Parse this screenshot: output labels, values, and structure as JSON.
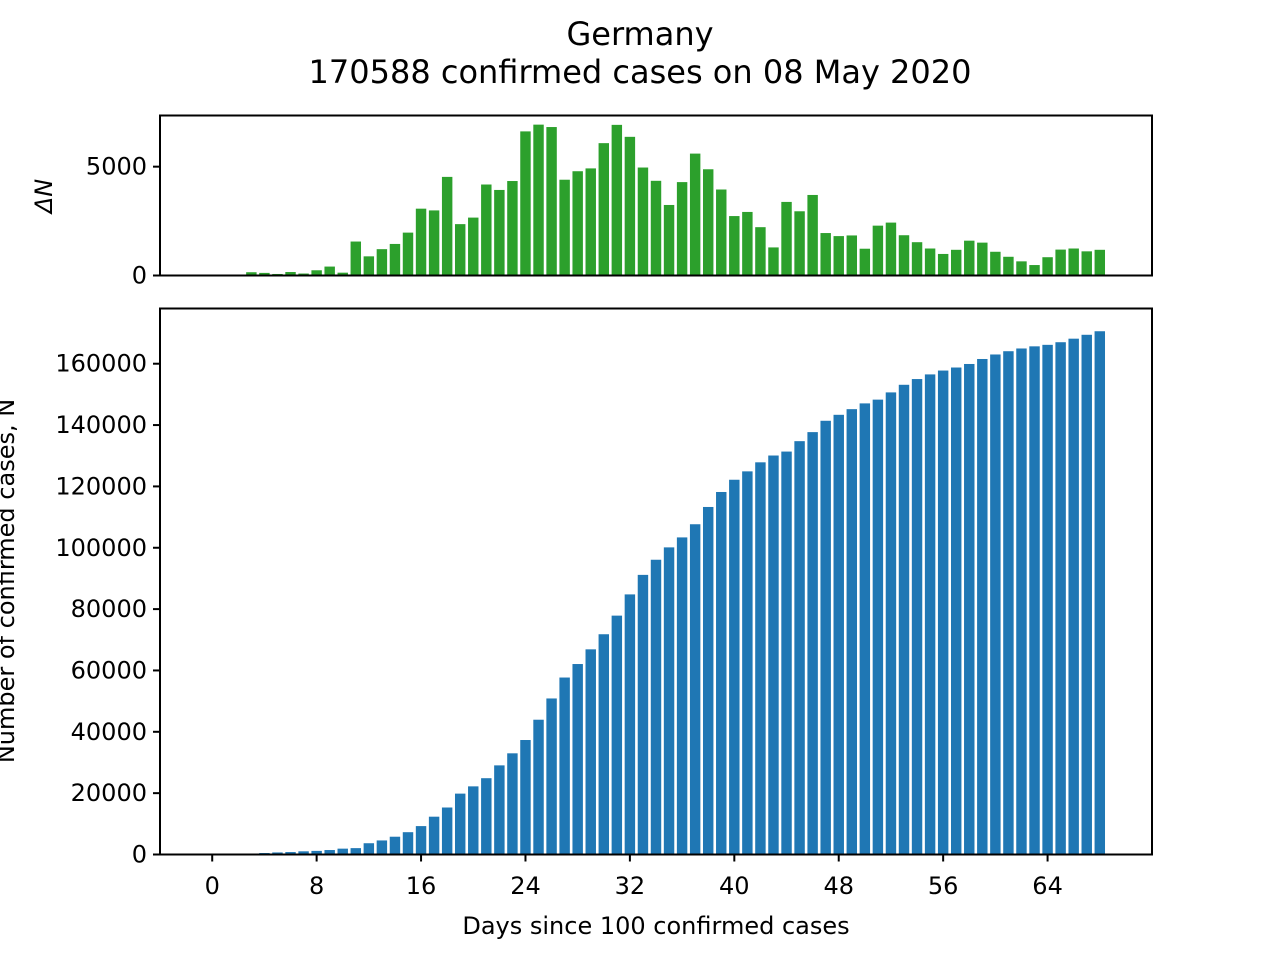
{
  "chart_data": [
    {
      "type": "bar",
      "panel": "daily-new-cases",
      "title": [
        "Germany",
        "170588 confirmed cases on 08 May 2020"
      ],
      "xlabel": "",
      "ylabel": "ΔN",
      "ylim": [
        0,
        7350
      ],
      "yticks": [
        0,
        5000
      ],
      "yticks_labels": [
        "0",
        "5000"
      ],
      "x": [
        0,
        1,
        2,
        3,
        4,
        5,
        6,
        7,
        8,
        9,
        10,
        11,
        12,
        13,
        14,
        15,
        16,
        17,
        18,
        19,
        20,
        21,
        22,
        23,
        24,
        25,
        26,
        27,
        28,
        29,
        30,
        31,
        32,
        33,
        34,
        35,
        36,
        37,
        38,
        39,
        40,
        41,
        42,
        43,
        44,
        45,
        46,
        47,
        48,
        49,
        50,
        51,
        52,
        53,
        54,
        55,
        56,
        57,
        58,
        59,
        60,
        61,
        62,
        63,
        64,
        65,
        66,
        67,
        68
      ],
      "values": [
        0,
        0,
        25,
        150,
        120,
        70,
        160,
        90,
        240,
        410,
        130,
        1560,
        880,
        1210,
        1450,
        1970,
        3070,
        2990,
        4530,
        2360,
        2660,
        4180,
        3930,
        4340,
        6620,
        6930,
        6820,
        4400,
        4790,
        4920,
        6080,
        6920,
        6370,
        4960,
        4350,
        3240,
        4290,
        5600,
        4880,
        3950,
        2730,
        2920,
        2220,
        1290,
        3380,
        2950,
        3700,
        1950,
        1810,
        1840,
        1230,
        2290,
        2430,
        1850,
        1530,
        1240,
        990,
        1180,
        1600,
        1510,
        1090,
        860,
        650,
        480,
        840,
        1190,
        1240,
        1110,
        1180
      ],
      "color": "#2ca02c"
    },
    {
      "type": "bar",
      "panel": "cumulative-cases",
      "xlabel": "Days since 100 confirmed cases",
      "ylabel": "Number of confirmed cases, N",
      "ylim": [
        0,
        178000
      ],
      "yticks": [
        0,
        20000,
        40000,
        60000,
        80000,
        100000,
        120000,
        140000,
        160000
      ],
      "yticks_labels": [
        "0",
        "20000",
        "40000",
        "60000",
        "80000",
        "100000",
        "120000",
        "140000",
        "160000"
      ],
      "xlim": [
        -4,
        72
      ],
      "xticks": [
        0,
        8,
        16,
        24,
        32,
        40,
        48,
        56,
        64
      ],
      "xticks_labels": [
        "0",
        "8",
        "16",
        "24",
        "32",
        "40",
        "48",
        "56",
        "64"
      ],
      "x": [
        0,
        1,
        2,
        3,
        4,
        5,
        6,
        7,
        8,
        9,
        10,
        11,
        12,
        13,
        14,
        15,
        16,
        17,
        18,
        19,
        20,
        21,
        22,
        23,
        24,
        25,
        26,
        27,
        28,
        29,
        30,
        31,
        32,
        33,
        34,
        35,
        36,
        37,
        38,
        39,
        40,
        41,
        42,
        43,
        44,
        45,
        46,
        47,
        48,
        49,
        50,
        51,
        52,
        53,
        54,
        55,
        56,
        57,
        58,
        59,
        60,
        61,
        62,
        63,
        64,
        65,
        66,
        67,
        68
      ],
      "values": [
        130,
        159,
        196,
        262,
        482,
        670,
        799,
        1040,
        1176,
        1457,
        1908,
        2078,
        3675,
        4585,
        5795,
        7272,
        9257,
        12327,
        15320,
        19848,
        22213,
        24873,
        29056,
        32986,
        37323,
        43938,
        50871,
        57695,
        62095,
        66885,
        71808,
        77872,
        84794,
        91159,
        96092,
        100123,
        103374,
        107663,
        113296,
        118181,
        122171,
        124908,
        127854,
        130072,
        131359,
        134753,
        137698,
        141397,
        143342,
        145184,
        147065,
        148291,
        150648,
        153129,
        154999,
        156513,
        157770,
        158758,
        159912,
        161539,
        163009,
        164077,
        164967,
        165664,
        166152,
        167007,
        168162,
        169430,
        170588
      ],
      "color": "#1f77b4"
    }
  ]
}
